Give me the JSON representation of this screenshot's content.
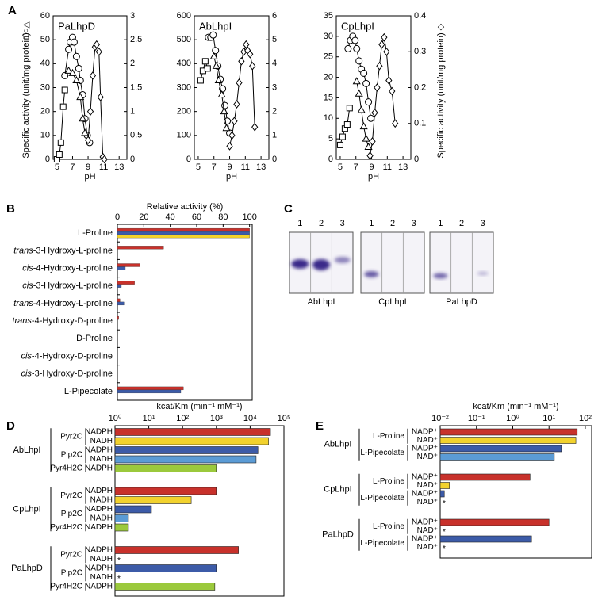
{
  "panel_labels": [
    "A",
    "B",
    "C",
    "D",
    "E"
  ],
  "chart_data": [
    {
      "type": "line",
      "title": "PaLhpD",
      "xlabel": "pH",
      "ylabel": "Specific activity (unit/mg protein)",
      "ylabel_symbols": "□○△",
      "xlim": [
        4.5,
        14
      ],
      "xticks": [
        5,
        7,
        9,
        11,
        13
      ],
      "ylim": [
        0,
        60
      ],
      "yticks": [
        0,
        10,
        20,
        30,
        40,
        50,
        60
      ],
      "y2lim": [
        0,
        3
      ],
      "y2ticks": [
        0,
        0.5,
        1,
        1.5,
        2,
        2.5,
        3
      ],
      "series": [
        {
          "marker": "square",
          "color": "#000000",
          "x": [
            5,
            5.3,
            5.5,
            5.8,
            6
          ],
          "values": [
            0,
            2,
            7,
            22,
            29
          ]
        },
        {
          "marker": "circle",
          "color": "#000000",
          "x": [
            6,
            6.5,
            6.7,
            7,
            7.2,
            7.5,
            7.8,
            8,
            8.3,
            8.6,
            8.9,
            9.2
          ],
          "values": [
            35,
            46,
            49,
            51,
            49,
            43,
            38,
            33,
            27,
            17,
            10,
            7
          ]
        },
        {
          "marker": "triangle",
          "color": "#000000",
          "x": [
            6.5,
            7,
            7.5,
            8,
            8.3,
            8.6
          ],
          "values": [
            37,
            36,
            33,
            26,
            17,
            11
          ]
        },
        {
          "marker": "diamond",
          "color": "#000000",
          "axis": "y2",
          "x": [
            9,
            9.3,
            9.6,
            9.9,
            10.1,
            10.4,
            10.6,
            10.9,
            11.1
          ],
          "values": [
            0.4,
            1.0,
            1.75,
            2.35,
            2.4,
            2.25,
            1.3,
            0.05,
            0
          ]
        }
      ]
    },
    {
      "type": "line",
      "title": "AbLhpI",
      "xlabel": "pH",
      "xlim": [
        4.5,
        14
      ],
      "xticks": [
        5,
        7,
        9,
        11,
        13
      ],
      "ylim": [
        0,
        600
      ],
      "yticks": [
        0,
        100,
        200,
        300,
        400,
        500,
        600
      ],
      "y2lim": [
        0,
        6
      ],
      "y2ticks": [
        0,
        1,
        2,
        3,
        4,
        5,
        6
      ],
      "series": [
        {
          "marker": "square",
          "color": "#000000",
          "x": [
            5.3,
            5.6,
            5.9,
            6.2
          ],
          "values": [
            330,
            370,
            410,
            380
          ]
        },
        {
          "marker": "circle",
          "color": "#000000",
          "x": [
            6.3,
            6.6,
            6.9,
            7.2,
            7.5,
            7.8,
            8.1,
            8.4,
            8.7,
            9
          ],
          "values": [
            510,
            510,
            520,
            455,
            390,
            335,
            295,
            225,
            160,
            110
          ]
        },
        {
          "marker": "triangle",
          "color": "#000000",
          "x": [
            7,
            7.3,
            7.6,
            8,
            8.3,
            8.6
          ],
          "values": [
            430,
            390,
            330,
            270,
            200,
            130
          ]
        },
        {
          "marker": "diamond",
          "color": "#000000",
          "axis": "y2",
          "x": [
            9,
            9.3,
            9.6,
            9.9,
            10.2,
            10.5,
            10.8,
            11.1,
            11.3,
            11.6,
            11.9,
            12.2
          ],
          "values": [
            0.55,
            1.0,
            1.6,
            2.3,
            3.2,
            4.1,
            4.5,
            4.8,
            4.55,
            4.4,
            3.9,
            1.35
          ]
        }
      ]
    },
    {
      "type": "line",
      "title": "CpLhpI",
      "xlabel": "pH",
      "y2label": "Specific activity (unit/mg protein)",
      "y2label_symbol": "◇",
      "xlim": [
        4.5,
        14
      ],
      "xticks": [
        5,
        7,
        9,
        11,
        13
      ],
      "ylim": [
        0,
        35
      ],
      "yticks": [
        0,
        5,
        10,
        15,
        20,
        25,
        30,
        35
      ],
      "y2lim": [
        0,
        0.4
      ],
      "y2ticks": [
        0,
        0.1,
        0.2,
        0.3,
        0.4
      ],
      "series": [
        {
          "marker": "square",
          "color": "#000000",
          "x": [
            5,
            5.3,
            5.6,
            5.9,
            6.2
          ],
          "values": [
            3.5,
            5.5,
            7.5,
            8.5,
            12.5
          ]
        },
        {
          "marker": "circle",
          "color": "#000000",
          "x": [
            6,
            6.3,
            6.6,
            6.9,
            7.1,
            7.4,
            7.7,
            8,
            8.3,
            8.6,
            8.9
          ],
          "values": [
            27,
            29,
            30,
            29,
            27,
            24,
            22,
            21,
            18.5,
            14,
            10
          ]
        },
        {
          "marker": "triangle",
          "color": "#000000",
          "x": [
            7.1,
            7.4,
            7.7,
            8,
            8.3,
            8.6
          ],
          "values": [
            19,
            16,
            12,
            8,
            5,
            3
          ]
        },
        {
          "marker": "diamond",
          "color": "#000000",
          "axis": "y2",
          "x": [
            8.8,
            9.1,
            9.4,
            9.7,
            10,
            10.3,
            10.6,
            10.9,
            11.2,
            11.6,
            12
          ],
          "values": [
            0.01,
            0.05,
            0.13,
            0.2,
            0.26,
            0.32,
            0.34,
            0.3,
            0.22,
            0.19,
            0.1
          ]
        }
      ]
    },
    {
      "type": "hbar",
      "xlabel": "Relative activity (%)",
      "xlim": [
        0,
        102
      ],
      "xticks": [
        0,
        20,
        40,
        60,
        80,
        100
      ],
      "categories": [
        "L-Proline",
        "trans-3-Hydroxy-L-proline",
        "cis-4-Hydroxy-L-proline",
        "cis-3-Hydroxy-L-proline",
        "trans-4-Hydroxy-L-proline",
        "trans-4-Hydroxy-D-proline",
        "D-Proline",
        "cis-4-Hydroxy-D-proline",
        "cis-3-Hydroxy-D-proline",
        "L-Pipecolate"
      ],
      "series": [
        {
          "color": "#c8312b",
          "values": [
            100,
            35,
            17,
            13,
            2,
            1,
            0,
            0,
            0,
            50
          ]
        },
        {
          "color": "#3c5ba8",
          "values": [
            100,
            0,
            6,
            3,
            5,
            0,
            0,
            0,
            0,
            48
          ]
        },
        {
          "color": "#f5d327",
          "values": [
            100,
            0,
            0,
            0,
            0,
            0,
            0,
            0,
            0,
            0
          ]
        }
      ]
    },
    {
      "type": "logbar",
      "xlabel": "kcat/Km (min⁻¹ mM⁻¹)",
      "log_x": true,
      "xlim": [
        1,
        100000
      ],
      "xticks": [
        {
          "value": 1,
          "label": "10⁰"
        },
        {
          "value": 10,
          "label": "10¹"
        },
        {
          "value": 100,
          "label": "10²"
        },
        {
          "value": 1000,
          "label": "10³"
        },
        {
          "value": 10000,
          "label": "10⁴"
        },
        {
          "value": 100000,
          "label": "10⁵"
        }
      ],
      "groups": [
        {
          "name": "AbLhpI",
          "substrates": [
            {
              "name": "Pyr2C",
              "cofactors": [
                "NADPH",
                "NADH"
              ]
            },
            {
              "name": "Pip2C",
              "cofactors": [
                "NADPH",
                "NADH"
              ]
            },
            {
              "name": "Pyr4H2C",
              "cofactors": [
                "NADPH"
              ]
            }
          ]
        },
        {
          "name": "CpLhpI",
          "substrates": [
            {
              "name": "Pyr2C",
              "cofactors": [
                "NADPH",
                "NADH"
              ]
            },
            {
              "name": "Pip2C",
              "cofactors": [
                "NADPH",
                "NADH"
              ]
            },
            {
              "name": "Pyr4H2C",
              "cofactors": [
                "NADPH"
              ]
            }
          ]
        },
        {
          "name": "PaLhpD",
          "substrates": [
            {
              "name": "Pyr2C",
              "cofactors": [
                "NADPH",
                "NADH"
              ]
            },
            {
              "name": "Pip2C",
              "cofactors": [
                "NADPH",
                "NADH"
              ]
            },
            {
              "name": "Pyr4H2C",
              "cofactors": [
                "NADPH"
              ]
            }
          ]
        }
      ],
      "values": [
        40000,
        35000,
        17000,
        15000,
        1000,
        1000,
        180,
        12,
        2.5,
        2.5,
        4500,
        null,
        1000,
        null,
        900
      ],
      "value_labels": [
        null,
        null,
        null,
        null,
        null,
        null,
        null,
        null,
        null,
        null,
        null,
        "*",
        null,
        "*",
        null
      ],
      "colors": [
        "#c8312b",
        "#f2d22e",
        "#3c5ba8",
        "#5b9bd5",
        "#9bc93c",
        "#c8312b",
        "#f2d22e",
        "#3c5ba8",
        "#5b9bd5",
        "#9bc93c",
        "#c8312b",
        "#f2d22e",
        "#3c5ba8",
        "#5b9bd5",
        "#9bc93c"
      ]
    },
    {
      "type": "logbar",
      "xlabel": "kcat/Km (min⁻¹ mM⁻¹)",
      "log_x": true,
      "xlim": [
        0.01,
        150
      ],
      "xticks": [
        {
          "value": 0.01,
          "label": "10⁻²"
        },
        {
          "value": 0.1,
          "label": "10⁻¹"
        },
        {
          "value": 1,
          "label": "10⁰"
        },
        {
          "value": 10,
          "label": "10¹"
        },
        {
          "value": 100,
          "label": "10²"
        }
      ],
      "groups": [
        {
          "name": "AbLhpI",
          "substrates": [
            {
              "name": "L-Proline",
              "cofactors": [
                "NADP⁺",
                "NAD⁺"
              ]
            },
            {
              "name": "L-Pipecolate",
              "cofactors": [
                "NADP⁺",
                "NAD⁺"
              ]
            }
          ]
        },
        {
          "name": "CpLhpI",
          "substrates": [
            {
              "name": "L-Proline",
              "cofactors": [
                "NADP⁺",
                "NAD⁺"
              ]
            },
            {
              "name": "L-Pipecolate",
              "cofactors": [
                "NADP⁺",
                "NAD⁺"
              ]
            }
          ]
        },
        {
          "name": "PaLhpD",
          "substrates": [
            {
              "name": "L-Proline",
              "cofactors": [
                "NADP⁺",
                "NAD⁺"
              ]
            },
            {
              "name": "L-Pipecolate",
              "cofactors": [
                "NADP⁺",
                "NAD⁺"
              ]
            }
          ]
        }
      ],
      "values": [
        60,
        55,
        22,
        14,
        3,
        0.018,
        0.013,
        null,
        10,
        null,
        3.3,
        null
      ],
      "value_labels": [
        null,
        null,
        null,
        null,
        null,
        null,
        null,
        "*",
        null,
        "*",
        null,
        "*"
      ],
      "colors": [
        "#c8312b",
        "#f2d22e",
        "#3c5ba8",
        "#5b9bd5",
        "#c8312b",
        "#f2d22e",
        "#3c5ba8",
        "#5b9bd5",
        "#c8312b",
        "#f2d22e",
        "#3c5ba8",
        "#5b9bd5"
      ]
    }
  ],
  "panel_c": {
    "gels": [
      {
        "name": "AbLhpI",
        "lanes": [
          "1",
          "2",
          "3"
        ]
      },
      {
        "name": "CpLhpI",
        "lanes": [
          "1",
          "2",
          "3"
        ]
      },
      {
        "name": "PaLhpD",
        "lanes": [
          "1",
          "2",
          "3"
        ]
      }
    ]
  }
}
